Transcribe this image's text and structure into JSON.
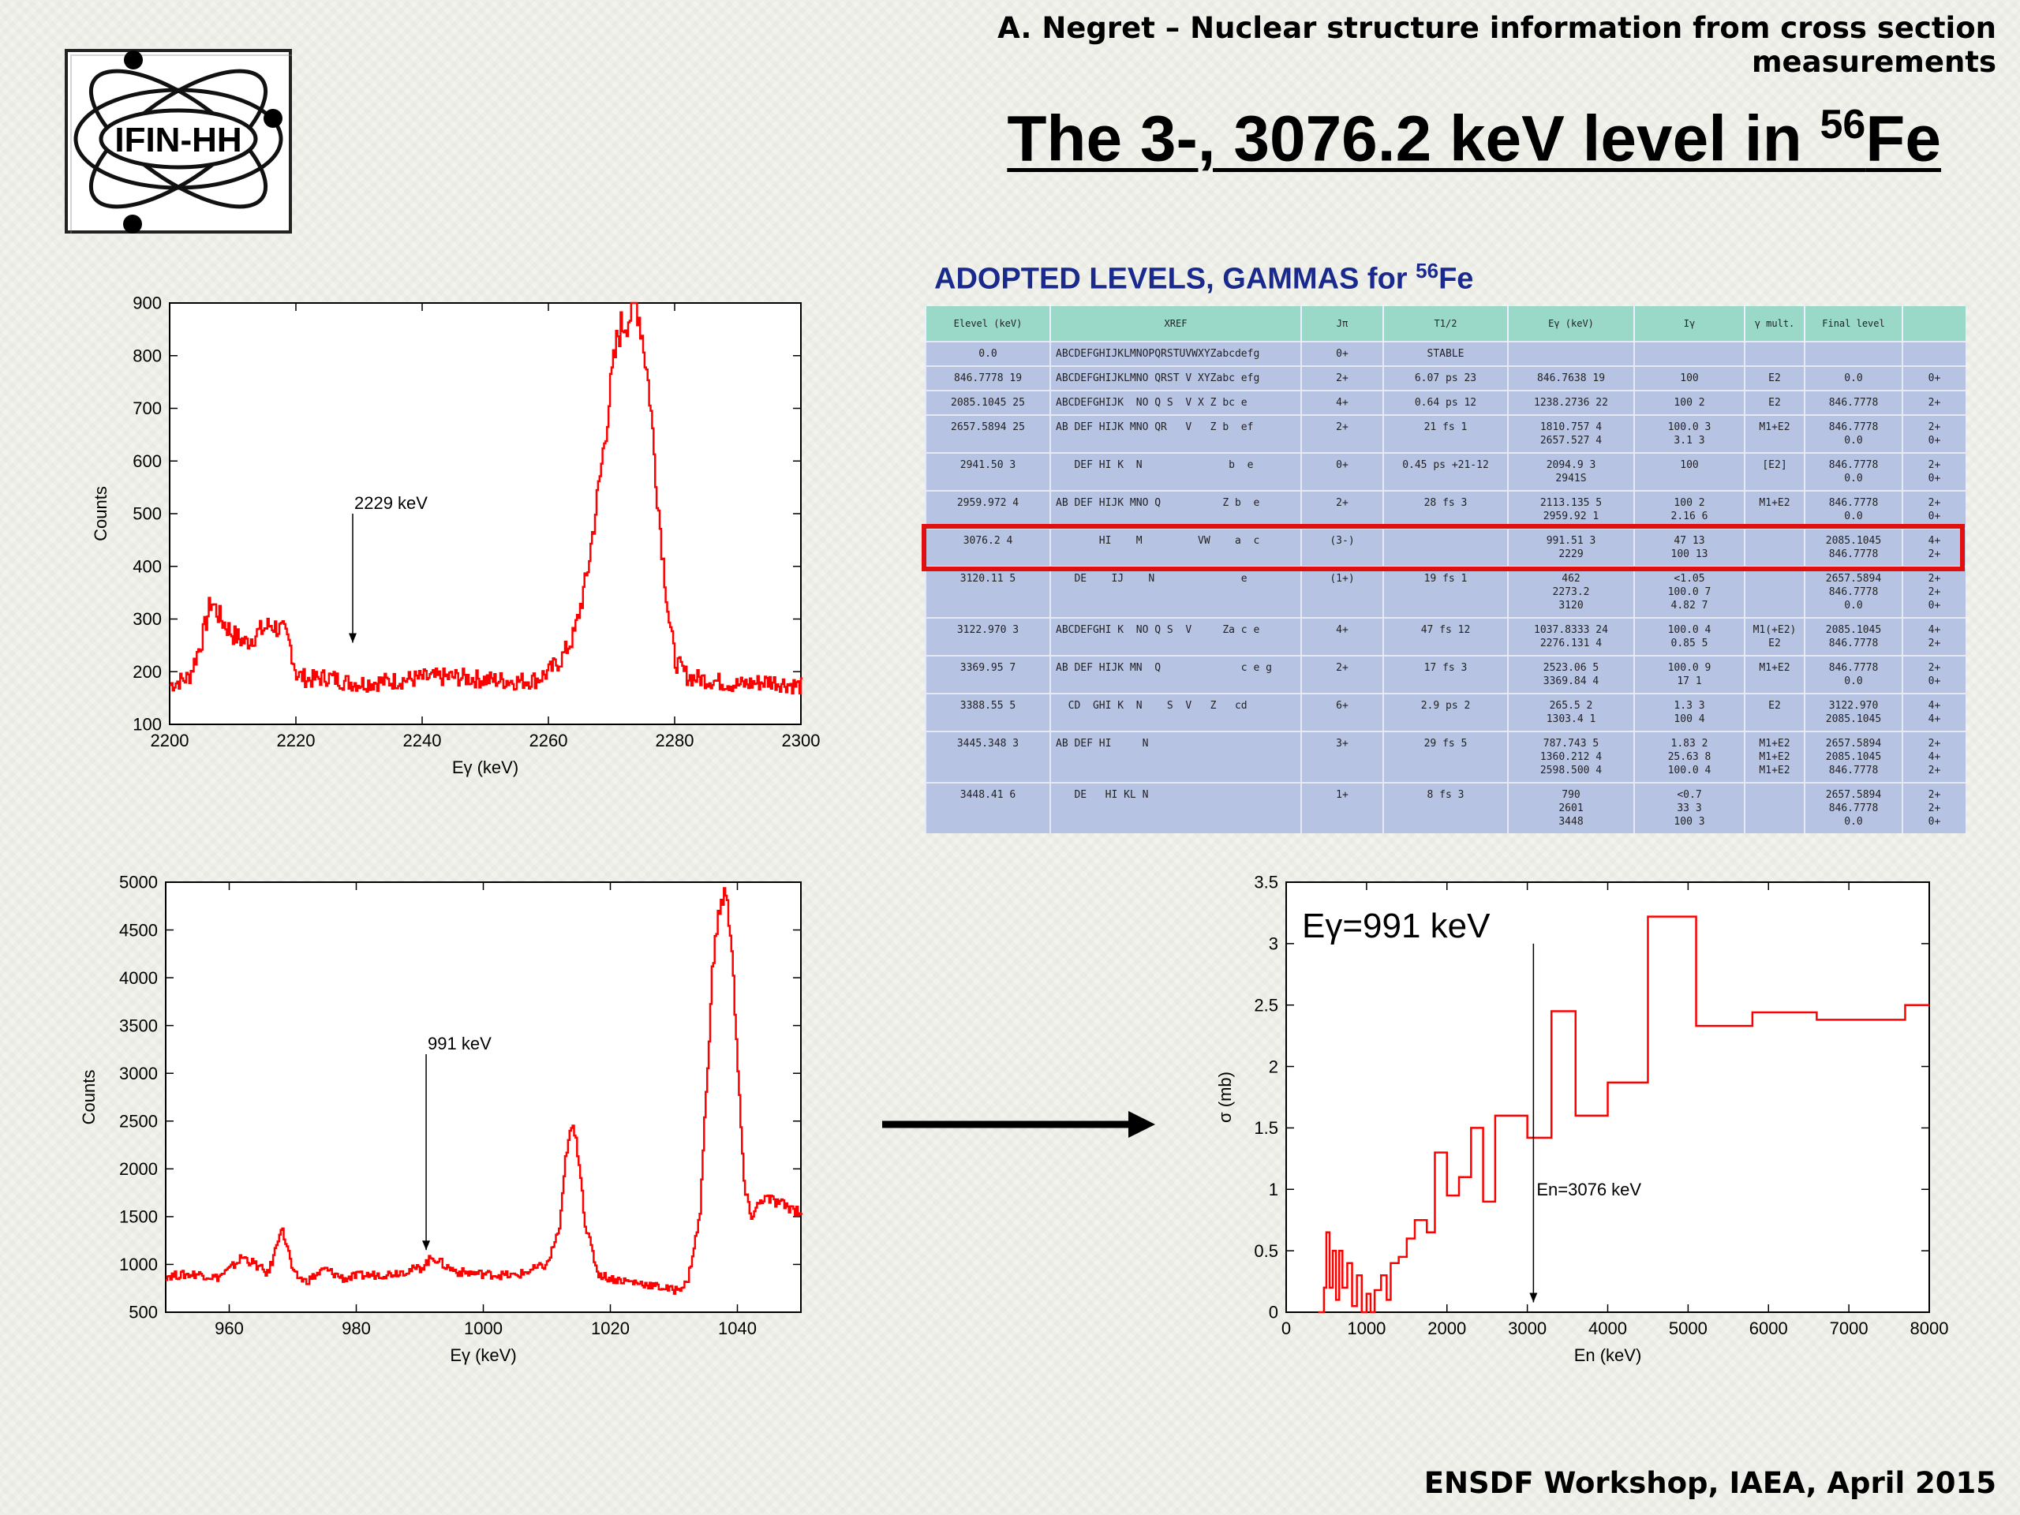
{
  "header": {
    "author_line": "A. Negret – Nuclear structure information from cross section measurements",
    "title": "The 3-, 3076.2 keV level in ",
    "title_sup": "56",
    "title_tail": "Fe",
    "logo_text": "IFIN-HH",
    "footer": "ENSDF Workshop, IAEA, April 2015"
  },
  "colors": {
    "curve": "#ff0000",
    "highlight": "#e01010",
    "table_header": "#9ad8c8",
    "table_body": "#b7c3e3",
    "title_blue": "#1a2a8c"
  },
  "ensdf": {
    "title": "ADOPTED LEVELS, GAMMAS for ",
    "title_sup": "56",
    "title_tail": "Fe",
    "headers": [
      "Elevel (keV)",
      "XREF",
      "Jπ",
      "T1/2",
      "Eγ (keV)",
      "Iγ",
      "γ mult.",
      "Final level",
      ""
    ],
    "rows": [
      [
        "0.0",
        "ABCDEFGHIJKLMNOPQRSTUVWXYZabcdefg",
        "0+",
        "STABLE",
        "",
        "",
        "",
        "",
        ""
      ],
      [
        "846.7778 19",
        "ABCDEFGHIJKLMNO QRST V XYZabc efg",
        "2+",
        "6.07 ps 23",
        "846.7638 19",
        "100",
        "E2",
        "0.0",
        "0+"
      ],
      [
        "2085.1045 25",
        "ABCDEFGHIJK  NO Q S  V X Z bc e",
        "4+",
        "0.64 ps 12",
        "1238.2736 22",
        "100 2",
        "E2",
        "846.7778",
        "2+"
      ],
      [
        "2657.5894 25",
        "AB DEF HIJK MNO QR   V   Z b  ef",
        "2+",
        "21 fs 1",
        "1810.757 4\n2657.527 4",
        "100.0 3\n3.1 3",
        "M1+E2",
        "846.7778\n0.0",
        "2+\n0+"
      ],
      [
        "2941.50 3",
        "   DEF HI K  N              b  e",
        "0+",
        "0.45 ps +21-12",
        "2094.9 3\n2941S",
        "100",
        "[E2]",
        "846.7778\n0.0",
        "2+\n0+"
      ],
      [
        "2959.972 4",
        "AB DEF HIJK MNO Q          Z b  e",
        "2+",
        "28 fs 3",
        "2113.135 5\n2959.92 1",
        "100 2\n2.16 6",
        "M1+E2",
        "846.7778\n0.0",
        "2+\n0+"
      ],
      [
        "3076.2 4",
        "       HI    M         VW    a  c",
        "(3-)",
        "",
        "991.51 3\n2229",
        "47 13\n100 13",
        "",
        "2085.1045\n846.7778",
        "4+\n2+"
      ],
      [
        "3120.11 5",
        "   DE    IJ    N              e",
        "(1+)",
        "19 fs 1",
        "462\n2273.2\n3120",
        "<1.05\n100.0 7\n4.82 7",
        "",
        "2657.5894\n846.7778\n0.0",
        "2+\n2+\n0+"
      ],
      [
        "3122.970 3",
        "ABCDEFGHI K  NO Q S  V     Za c e",
        "4+",
        "47 fs 12",
        "1037.8333 24\n2276.131 4",
        "100.0 4\n0.85 5",
        "M1(+E2)\nE2",
        "2085.1045\n846.7778",
        "4+\n2+"
      ],
      [
        "3369.95 7",
        "AB DEF HIJK MN  Q             c e g",
        "2+",
        "17 fs 3",
        "2523.06 5\n3369.84 4",
        "100.0 9\n17 1",
        "M1+E2",
        "846.7778\n0.0",
        "2+\n0+"
      ],
      [
        "3388.55 5",
        "  CD  GHI K  N    S  V   Z   cd",
        "6+",
        "2.9 ps 2",
        "265.5 2\n1303.4 1",
        "1.3 3\n100 4",
        "E2",
        "3122.970\n2085.1045",
        "4+\n4+"
      ],
      [
        "3445.348 3",
        "AB DEF HI     N",
        "3+",
        "29 fs 5",
        "787.743 5\n1360.212 4\n2598.500 4",
        "1.83 2\n25.63 8\n100.0 4",
        "M1+E2\nM1+E2\nM1+E2",
        "2657.5894\n2085.1045\n846.7778",
        "2+\n4+\n2+"
      ],
      [
        "3448.41 6",
        "   DE   HI KL N",
        "1+",
        "8 fs 3",
        "790\n2601\n3448",
        "<0.7\n33 3\n100 3",
        "",
        "2657.5894\n846.7778\n0.0",
        "2+\n2+\n0+"
      ]
    ]
  },
  "chart_data": [
    {
      "type": "line",
      "title": "",
      "xlabel": "Eγ (keV)",
      "ylabel": "Counts",
      "xlim": [
        2200,
        2300
      ],
      "ylim": [
        100,
        900
      ],
      "xticks": [
        2200,
        2220,
        2240,
        2260,
        2280,
        2300
      ],
      "yticks": [
        100,
        200,
        300,
        400,
        500,
        600,
        700,
        800,
        900
      ],
      "annotation": {
        "text": "2229 keV",
        "x": 2229,
        "y_top": 500,
        "y_bottom": 255
      },
      "series": [
        {
          "x": [
            2200,
            2203,
            2205,
            2206.5,
            2208,
            2210,
            2212,
            2214,
            2216,
            2218,
            2219,
            2220,
            2222,
            2225,
            2228,
            2230,
            2235,
            2240,
            2245,
            2250,
            2255,
            2258,
            2260,
            2262,
            2264,
            2266,
            2268,
            2270,
            2271,
            2272,
            2273,
            2273.5,
            2274,
            2274.5,
            2275,
            2276,
            2277,
            2278,
            2279,
            2280,
            2282,
            2285,
            2290,
            2295,
            2300
          ],
          "y": [
            175,
            190,
            260,
            335,
            300,
            270,
            255,
            275,
            290,
            275,
            250,
            195,
            185,
            190,
            180,
            178,
            182,
            188,
            190,
            185,
            182,
            185,
            200,
            225,
            270,
            380,
            560,
            760,
            845,
            865,
            880,
            900,
            895,
            860,
            820,
            720,
            560,
            420,
            300,
            220,
            190,
            185,
            175,
            182,
            172
          ]
        }
      ]
    },
    {
      "type": "line",
      "title": "",
      "xlabel": "Eγ (keV)",
      "ylabel": "Counts",
      "xlim": [
        950,
        1050
      ],
      "ylim": [
        500,
        5000
      ],
      "xticks": [
        960,
        980,
        1000,
        1020,
        1040
      ],
      "yticks": [
        500,
        1000,
        1500,
        2000,
        2500,
        3000,
        3500,
        4000,
        4500,
        5000
      ],
      "annotation": {
        "text": "991 keV",
        "x": 991,
        "y_top": 3200,
        "y_bottom": 1150
      },
      "series": [
        {
          "x": [
            950,
            955,
            958,
            960,
            962,
            964,
            966,
            967,
            968,
            969,
            970,
            972,
            975,
            978,
            980,
            985,
            990,
            992,
            994,
            996,
            1000,
            1005,
            1010,
            1012,
            1013,
            1014,
            1015,
            1016,
            1018,
            1020,
            1025,
            1030,
            1032,
            1034,
            1035,
            1036,
            1037,
            1038,
            1039,
            1040,
            1041,
            1042,
            1044,
            1046,
            1048,
            1050
          ],
          "y": [
            880,
            900,
            860,
            950,
            1080,
            1000,
            900,
            1100,
            1400,
            1200,
            900,
            820,
            950,
            850,
            880,
            900,
            960,
            1080,
            980,
            920,
            900,
            880,
            1000,
            1400,
            2200,
            2450,
            2100,
            1400,
            900,
            850,
            800,
            730,
            800,
            1500,
            2800,
            4100,
            4700,
            4900,
            4400,
            3000,
            1800,
            1500,
            1700,
            1650,
            1600,
            1550
          ]
        }
      ]
    },
    {
      "type": "line",
      "title": "",
      "xlabel": "En (keV)",
      "ylabel": "σ (mb)",
      "xlim": [
        0,
        8000
      ],
      "ylim": [
        0,
        3.5
      ],
      "xticks": [
        0,
        1000,
        2000,
        3000,
        4000,
        5000,
        6000,
        7000,
        8000
      ],
      "yticks": [
        0,
        0.5,
        1,
        1.5,
        2,
        2.5,
        3,
        3.5
      ],
      "labels": {
        "main": "Eγ=991 keV",
        "arrow": "En=3076 keV"
      },
      "annotation": {
        "x": 3076,
        "y_top": 3.0,
        "y_bottom": 0.08
      },
      "series": [
        {
          "step": true,
          "x": [
            400,
            470,
            500,
            540,
            580,
            620,
            660,
            700,
            760,
            820,
            880,
            940,
            1000,
            1050,
            1100,
            1180,
            1250,
            1300,
            1400,
            1500,
            1600,
            1750,
            1850,
            2000,
            2150,
            2300,
            2450,
            2600,
            2800,
            3000,
            3300,
            3600,
            4000,
            4500,
            5100,
            5800,
            6600,
            7700,
            8000
          ],
          "y": [
            0,
            0.2,
            0.65,
            0.2,
            0.5,
            0.1,
            0.5,
            0.2,
            0.4,
            0.05,
            0.3,
            0,
            0.15,
            0,
            0.18,
            0.3,
            0.1,
            0.4,
            0.45,
            0.6,
            0.75,
            0.65,
            1.3,
            0.95,
            1.1,
            1.5,
            0.9,
            1.6,
            1.6,
            1.42,
            2.45,
            1.6,
            1.87,
            3.22,
            2.33,
            2.44,
            2.38,
            2.5,
            2.5
          ]
        }
      ]
    }
  ]
}
